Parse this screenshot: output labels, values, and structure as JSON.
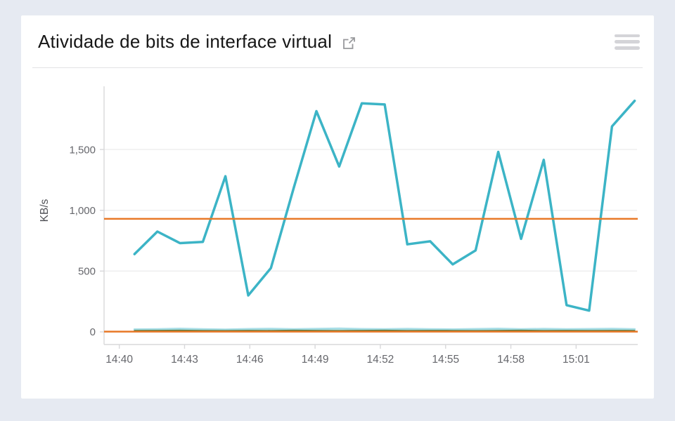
{
  "page": {
    "background": "#e6eaf2",
    "card_background": "#ffffff"
  },
  "header": {
    "title": "Atividade de bits de interface virtual",
    "external_link_icon": "external-link-icon",
    "menu_icon": "menu-icon"
  },
  "chart_data": {
    "type": "line",
    "title": "Atividade de bits de interface virtual",
    "xlabel": "",
    "ylabel": "KB/s",
    "legend": "none",
    "grid": "horizontal-only",
    "ylim": [
      -104,
      2008
    ],
    "xlim_minutes_after_1440": [
      -0.7,
      23.8
    ],
    "x_ticks": [
      {
        "t": 0,
        "label": "14:40"
      },
      {
        "t": 3,
        "label": "14:43"
      },
      {
        "t": 6,
        "label": "14:46"
      },
      {
        "t": 9,
        "label": "14:49"
      },
      {
        "t": 12,
        "label": "14:52"
      },
      {
        "t": 15,
        "label": "14:55"
      },
      {
        "t": 18,
        "label": "14:58"
      },
      {
        "t": 21,
        "label": "15:01"
      }
    ],
    "y_ticks": [
      {
        "v": 0,
        "label": "0",
        "gridline": false
      },
      {
        "v": 500,
        "label": "500",
        "gridline": true
      },
      {
        "v": 1000,
        "label": "1,000",
        "gridline": true
      },
      {
        "v": 1500,
        "label": "1,500",
        "gridline": true
      }
    ],
    "colors": {
      "teal": "#3cb4c6",
      "orange": "#e87826",
      "green": "#567d46",
      "axis": "#d8d8da",
      "grid": "#ededee",
      "tick_text": "#66676c",
      "axis_title_text": "#505156"
    },
    "series": [
      {
        "name": "traffic-main-teal",
        "kind": "line",
        "color": "#3cb4c6",
        "width": 3.5,
        "opacity": 1,
        "t": [
          0.7,
          1.75,
          2.79,
          3.84,
          4.88,
          5.93,
          6.97,
          8.02,
          9.06,
          10.11,
          11.15,
          12.2,
          13.24,
          14.29,
          15.33,
          16.38,
          17.42,
          18.47,
          19.51,
          20.56,
          21.6,
          22.65,
          23.69
        ],
        "v": [
          640,
          825,
          730,
          740,
          1280,
          300,
          525,
          1185,
          1815,
          1360,
          1880,
          1870,
          720,
          745,
          555,
          670,
          1480,
          765,
          1415,
          220,
          175,
          1690,
          1900
        ]
      },
      {
        "name": "traffic-small-teal",
        "kind": "line",
        "color": "#3cb4c6",
        "width": 3,
        "opacity": 0.45,
        "t": [
          0.7,
          1.75,
          2.79,
          3.84,
          4.88,
          5.93,
          6.97,
          8.02,
          9.06,
          10.11,
          11.15,
          12.2,
          13.24,
          14.29,
          15.33,
          16.38,
          17.42,
          18.47,
          19.51,
          20.56,
          21.6,
          22.65,
          23.69
        ],
        "v": [
          20,
          22,
          26,
          21,
          19,
          23,
          25,
          22,
          24,
          27,
          23,
          21,
          24,
          22,
          20,
          23,
          26,
          22,
          24,
          21,
          23,
          25,
          22
        ]
      },
      {
        "name": "traffic-small-green",
        "kind": "line",
        "color": "#567d46",
        "width": 2,
        "opacity": 1,
        "t": [
          0.7,
          1.75,
          2.79,
          3.84,
          4.88,
          5.93,
          6.97,
          8.02,
          9.06,
          10.11,
          11.15,
          12.2,
          13.24,
          14.29,
          15.33,
          16.38,
          17.42,
          18.47,
          19.51,
          20.56,
          21.6,
          22.65,
          23.69
        ],
        "v": [
          10,
          11,
          12,
          10,
          9,
          11,
          10,
          12,
          11,
          10,
          11,
          12,
          10,
          11,
          10,
          9,
          11,
          12,
          10,
          11,
          10,
          11,
          10
        ]
      },
      {
        "name": "threshold-high-orange",
        "kind": "hline",
        "color": "#e87826",
        "width": 2.5,
        "opacity": 1,
        "value": 930
      },
      {
        "name": "threshold-low-orange",
        "kind": "hline",
        "color": "#e87826",
        "width": 2.5,
        "opacity": 1,
        "value": 2
      }
    ]
  }
}
